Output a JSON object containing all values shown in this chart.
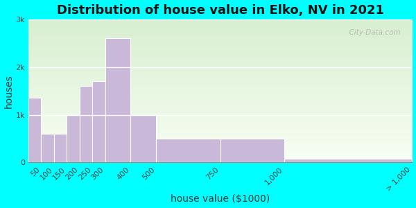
{
  "title": "Distribution of house value in Elko, NV in 2021",
  "xlabel": "house value ($1000)",
  "ylabel": "houses",
  "bin_edges": [
    0,
    50,
    100,
    150,
    200,
    250,
    300,
    400,
    500,
    750,
    1000,
    1500
  ],
  "bar_values": [
    1350,
    600,
    600,
    1000,
    1600,
    1700,
    2600,
    1000,
    500,
    500,
    75
  ],
  "xtick_positions": [
    50,
    100,
    150,
    200,
    250,
    300,
    400,
    500,
    750,
    1000,
    1500
  ],
  "xtick_labels": [
    "50",
    "100",
    "150",
    "200",
    "250",
    "300",
    "400",
    "500",
    "750",
    "1,000",
    "> 1,000"
  ],
  "bar_color": "#c9b8d8",
  "bar_edge_color": "#ffffff",
  "yticks": [
    0,
    1000,
    2000,
    3000
  ],
  "ytick_labels": [
    "0",
    "1k",
    "2k",
    "3k"
  ],
  "ylim": [
    0,
    3000
  ],
  "xlim": [
    0,
    1500
  ],
  "bg_outer": "#00ffff",
  "bg_plot_color": "#e8f5e0",
  "title_fontsize": 13,
  "axis_label_fontsize": 10,
  "tick_fontsize": 8,
  "watermark_text": "  City-Data.com"
}
